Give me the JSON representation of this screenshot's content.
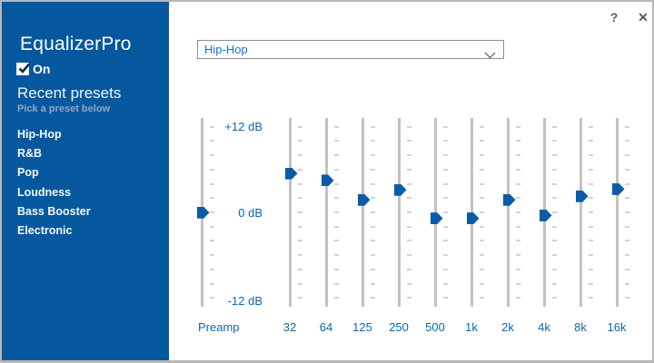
{
  "window": {
    "help_icon": "?",
    "close_icon": "✕"
  },
  "sidebar": {
    "app_title": "EqualizerPro",
    "power_toggle": {
      "label": "On",
      "checked": true
    },
    "section_title": "Recent presets",
    "section_subtitle": "Pick a preset below",
    "presets": [
      "Hip-Hop",
      "R&B",
      "Pop",
      "Loudness",
      "Bass Booster",
      "Electronic"
    ]
  },
  "preset_dropdown": {
    "selected": "Hip-Hop"
  },
  "equalizer": {
    "scale": {
      "top_label": "+12 dB",
      "mid_label": "0 dB",
      "bottom_label": "-12 dB",
      "max_db": 12,
      "min_db": -12
    },
    "bands": [
      {
        "label": "Preamp",
        "value_db": 0
      },
      {
        "label": "32",
        "value_db": 5.5
      },
      {
        "label": "64",
        "value_db": 4.5
      },
      {
        "label": "125",
        "value_db": 1.8
      },
      {
        "label": "250",
        "value_db": 3.2
      },
      {
        "label": "500",
        "value_db": -0.8
      },
      {
        "label": "1k",
        "value_db": -0.8
      },
      {
        "label": "2k",
        "value_db": 1.8
      },
      {
        "label": "4k",
        "value_db": -0.4
      },
      {
        "label": "8k",
        "value_db": 2.3
      },
      {
        "label": "16k",
        "value_db": 3.3
      }
    ]
  },
  "colors": {
    "sidebar_bg": "#05589e",
    "accent_text_blue": "#0d67ad",
    "dropdown_text_blue": "#0f74cc",
    "thumb_blue": "#0a5ca8",
    "track_gray": "#c2c2c2",
    "window_border": "#b8b8b8",
    "subtitle_muted": "#90a7c5"
  }
}
